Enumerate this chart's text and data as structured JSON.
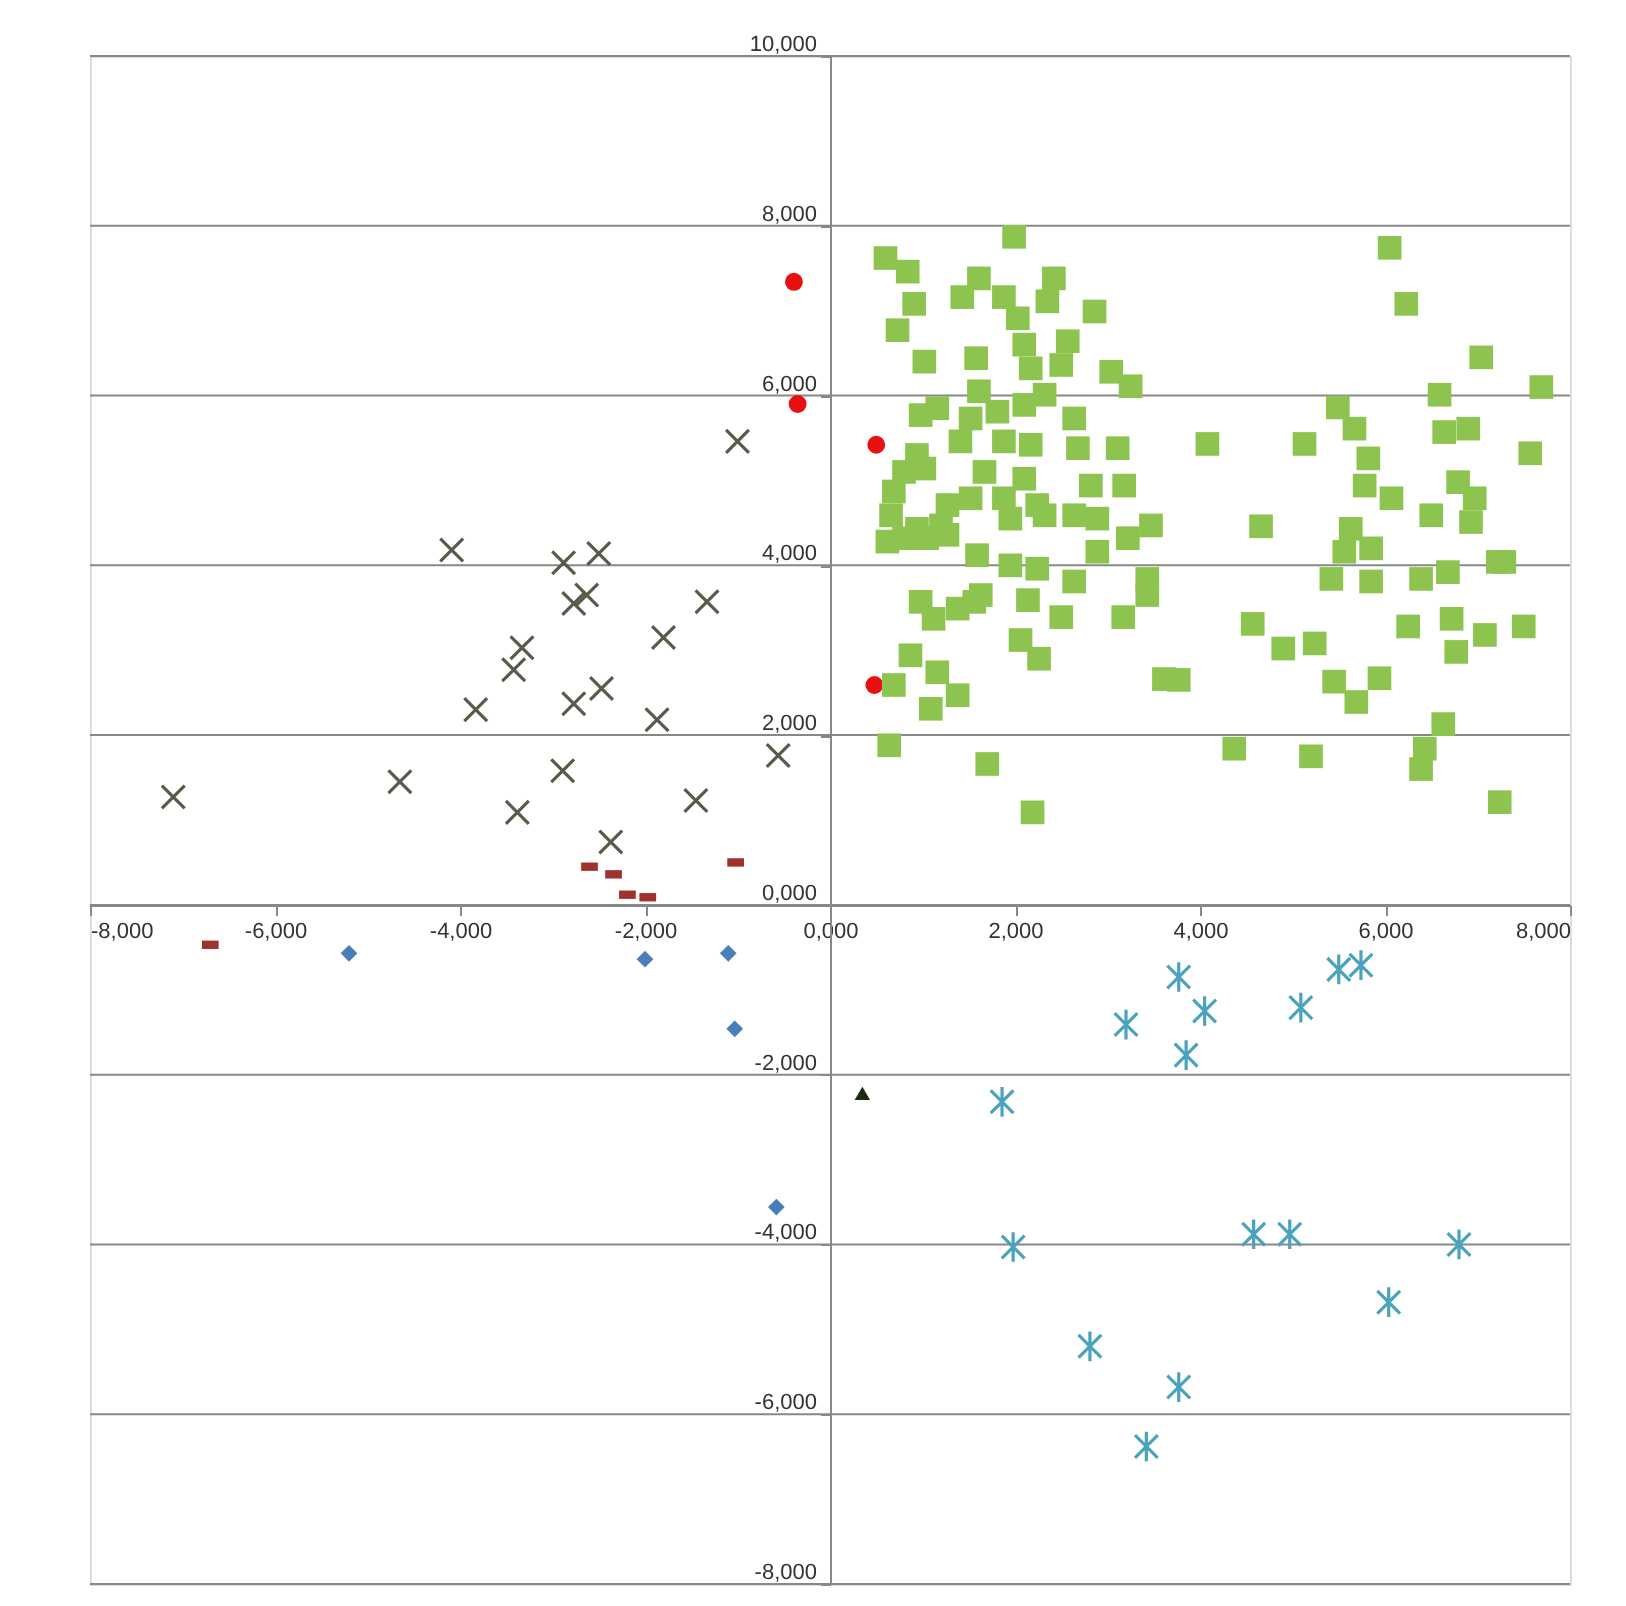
{
  "chart_data": {
    "type": "scatter",
    "xlim": [
      -8,
      8
    ],
    "ylim": [
      -8,
      10
    ],
    "xticks": [
      {
        "value": -8,
        "label": "-8,000"
      },
      {
        "value": -6,
        "label": "-6,000"
      },
      {
        "value": -4,
        "label": "-4,000"
      },
      {
        "value": -2,
        "label": "-2,000"
      },
      {
        "value": 0,
        "label": "0,000"
      },
      {
        "value": 2,
        "label": "2,000"
      },
      {
        "value": 4,
        "label": "4,000"
      },
      {
        "value": 6,
        "label": "6,000"
      },
      {
        "value": 8,
        "label": "8,000"
      }
    ],
    "yticks": [
      {
        "value": -8,
        "label": "-8,000"
      },
      {
        "value": -6,
        "label": "-6,000"
      },
      {
        "value": -4,
        "label": "-4,000"
      },
      {
        "value": -2,
        "label": "-2,000"
      },
      {
        "value": 0,
        "label": "0,000"
      },
      {
        "value": 2,
        "label": "2,000"
      },
      {
        "value": 4,
        "label": "4,000"
      },
      {
        "value": 6,
        "label": "6,000"
      },
      {
        "value": 8,
        "label": "8,000"
      },
      {
        "value": 10,
        "label": "10,000"
      }
    ],
    "grid": "y",
    "series": [
      {
        "marker": "diamond",
        "color": "#4a7ebb",
        "x": [
          -5.2,
          -2.0,
          -1.1,
          -1.03,
          -0.58
        ],
        "values": [
          -0.57,
          -0.64,
          -0.57,
          -1.46,
          -3.56
        ]
      },
      {
        "marker": "square",
        "line_style": "dashed",
        "color": "#a0322d",
        "x": [
          -6.7,
          -2.6,
          -2.34,
          -2.19,
          -1.97,
          -1.02
        ],
        "values": [
          -0.47,
          0.45,
          0.36,
          0.12,
          0.09,
          0.5
        ]
      },
      {
        "marker": "cross",
        "color": "#5a5a4a",
        "x": [
          -7.1,
          -4.65,
          -4.09,
          -3.83,
          -3.38,
          -3.42,
          -3.33,
          -2.88,
          -2.77,
          -2.63,
          -2.5,
          -2.77,
          -2.47,
          -2.89,
          -2.37,
          -1.8,
          -1.87,
          -1.33,
          -1.45,
          -1.0,
          -0.56
        ],
        "values": [
          1.27,
          1.45,
          4.18,
          2.3,
          1.09,
          2.77,
          3.03,
          4.03,
          3.55,
          3.65,
          4.14,
          2.37,
          2.55,
          1.58,
          0.74,
          3.15,
          2.18,
          3.57,
          1.23,
          5.46,
          1.76
        ]
      },
      {
        "marker": "circle",
        "color": "#e81010",
        "x": [
          -0.39,
          -0.35,
          0.5,
          0.48
        ],
        "values": [
          7.34,
          5.9,
          5.42,
          2.59
        ]
      },
      {
        "marker": "triangle",
        "color": "#1c2a0f",
        "x": [
          0.35
        ],
        "values": [
          -2.22
        ]
      },
      {
        "marker": "cross",
        "line_style": "solid",
        "color": "#4aa3bd",
        "x": [
          1.86,
          1.98,
          2.81,
          3.2,
          3.42,
          3.77,
          3.77,
          3.85,
          4.05,
          4.58,
          4.97,
          5.09,
          5.5,
          5.74,
          6.04,
          6.8
        ],
        "values": [
          -2.32,
          -4.03,
          -5.2,
          -1.41,
          -6.38,
          -0.85,
          -5.68,
          -1.77,
          -1.25,
          -3.88,
          -3.88,
          -1.21,
          -0.76,
          -0.71,
          -4.68,
          -4.0
        ]
      },
      {
        "marker": "square",
        "color": "#8dc450",
        "x": [
          1.99,
          0.6,
          0.84,
          0.91,
          0.73,
          1.02,
          1.43,
          1.61,
          1.88,
          2.03,
          2.42,
          2.35,
          2.86,
          2.57,
          2.1,
          1.58,
          2.17,
          2.5,
          3.04,
          3.25,
          1.16,
          0.98,
          1.61,
          1.52,
          1.81,
          2.1,
          2.32,
          2.64,
          1.41,
          1.88,
          2.17,
          2.68,
          3.11,
          0.94,
          0.8,
          1.02,
          0.69,
          1.67,
          2.1,
          2.82,
          3.18,
          1.27,
          1.52,
          1.88,
          2.24,
          0.66,
          0.94,
          1.2,
          1.95,
          2.32,
          2.64,
          2.89,
          3.47,
          0.62,
          0.8,
          1.05,
          1.27,
          1.59,
          1.95,
          2.24,
          2.89,
          3.22,
          3.43,
          2.64,
          2.14,
          0.98,
          1.12,
          1.38,
          1.63,
          1.56,
          2.5,
          3.17,
          3.43,
          2.06,
          2.26,
          0.87,
          1.16,
          1.38,
          1.09,
          0.69,
          0.64,
          1.7,
          2.19,
          3.77,
          4.08,
          4.66,
          4.57,
          4.9,
          5.24,
          4.37,
          5.2,
          5.13,
          6.05,
          6.23,
          7.04,
          7.69,
          6.59,
          7.57,
          5.49,
          5.67,
          5.82,
          6.64,
          6.9,
          5.78,
          6.07,
          6.5,
          6.79,
          6.97,
          6.93,
          5.63,
          5.56,
          5.85,
          7.22,
          5.42,
          5.85,
          6.39,
          6.68,
          6.25,
          6.72,
          7.08,
          7.5,
          6.77,
          5.45,
          5.69,
          5.94,
          6.63,
          6.43,
          6.39,
          7.24,
          7.29,
          3.61
        ],
        "values": [
          7.87,
          7.62,
          7.46,
          7.08,
          6.77,
          6.4,
          7.16,
          7.38,
          7.16,
          6.91,
          7.38,
          7.11,
          6.99,
          6.64,
          6.6,
          6.44,
          6.32,
          6.36,
          6.28,
          6.11,
          5.85,
          5.77,
          6.05,
          5.73,
          5.81,
          5.89,
          6.01,
          5.73,
          5.46,
          5.46,
          5.42,
          5.38,
          5.38,
          5.3,
          5.1,
          5.14,
          4.87,
          5.1,
          5.02,
          4.94,
          4.94,
          4.71,
          4.79,
          4.79,
          4.71,
          4.59,
          4.43,
          4.47,
          4.55,
          4.59,
          4.59,
          4.55,
          4.47,
          4.28,
          4.32,
          4.32,
          4.36,
          4.12,
          4.0,
          3.96,
          4.16,
          4.32,
          3.84,
          3.81,
          3.59,
          3.57,
          3.37,
          3.49,
          3.65,
          3.57,
          3.39,
          3.39,
          3.65,
          3.12,
          2.9,
          2.94,
          2.74,
          2.47,
          2.31,
          2.59,
          1.88,
          1.66,
          1.09,
          2.65,
          5.43,
          4.46,
          3.31,
          3.02,
          3.08,
          1.84,
          1.75,
          5.43,
          7.74,
          7.08,
          6.45,
          6.1,
          6.01,
          5.32,
          5.86,
          5.61,
          5.26,
          5.57,
          5.61,
          4.94,
          4.79,
          4.59,
          4.98,
          4.79,
          4.51,
          4.43,
          4.16,
          4.2,
          4.04,
          3.84,
          3.81,
          3.84,
          3.92,
          3.28,
          3.37,
          3.18,
          3.28,
          2.98,
          2.63,
          2.39,
          2.67,
          2.13,
          1.84,
          1.6,
          1.21,
          4.04,
          2.66
        ]
      }
    ]
  }
}
